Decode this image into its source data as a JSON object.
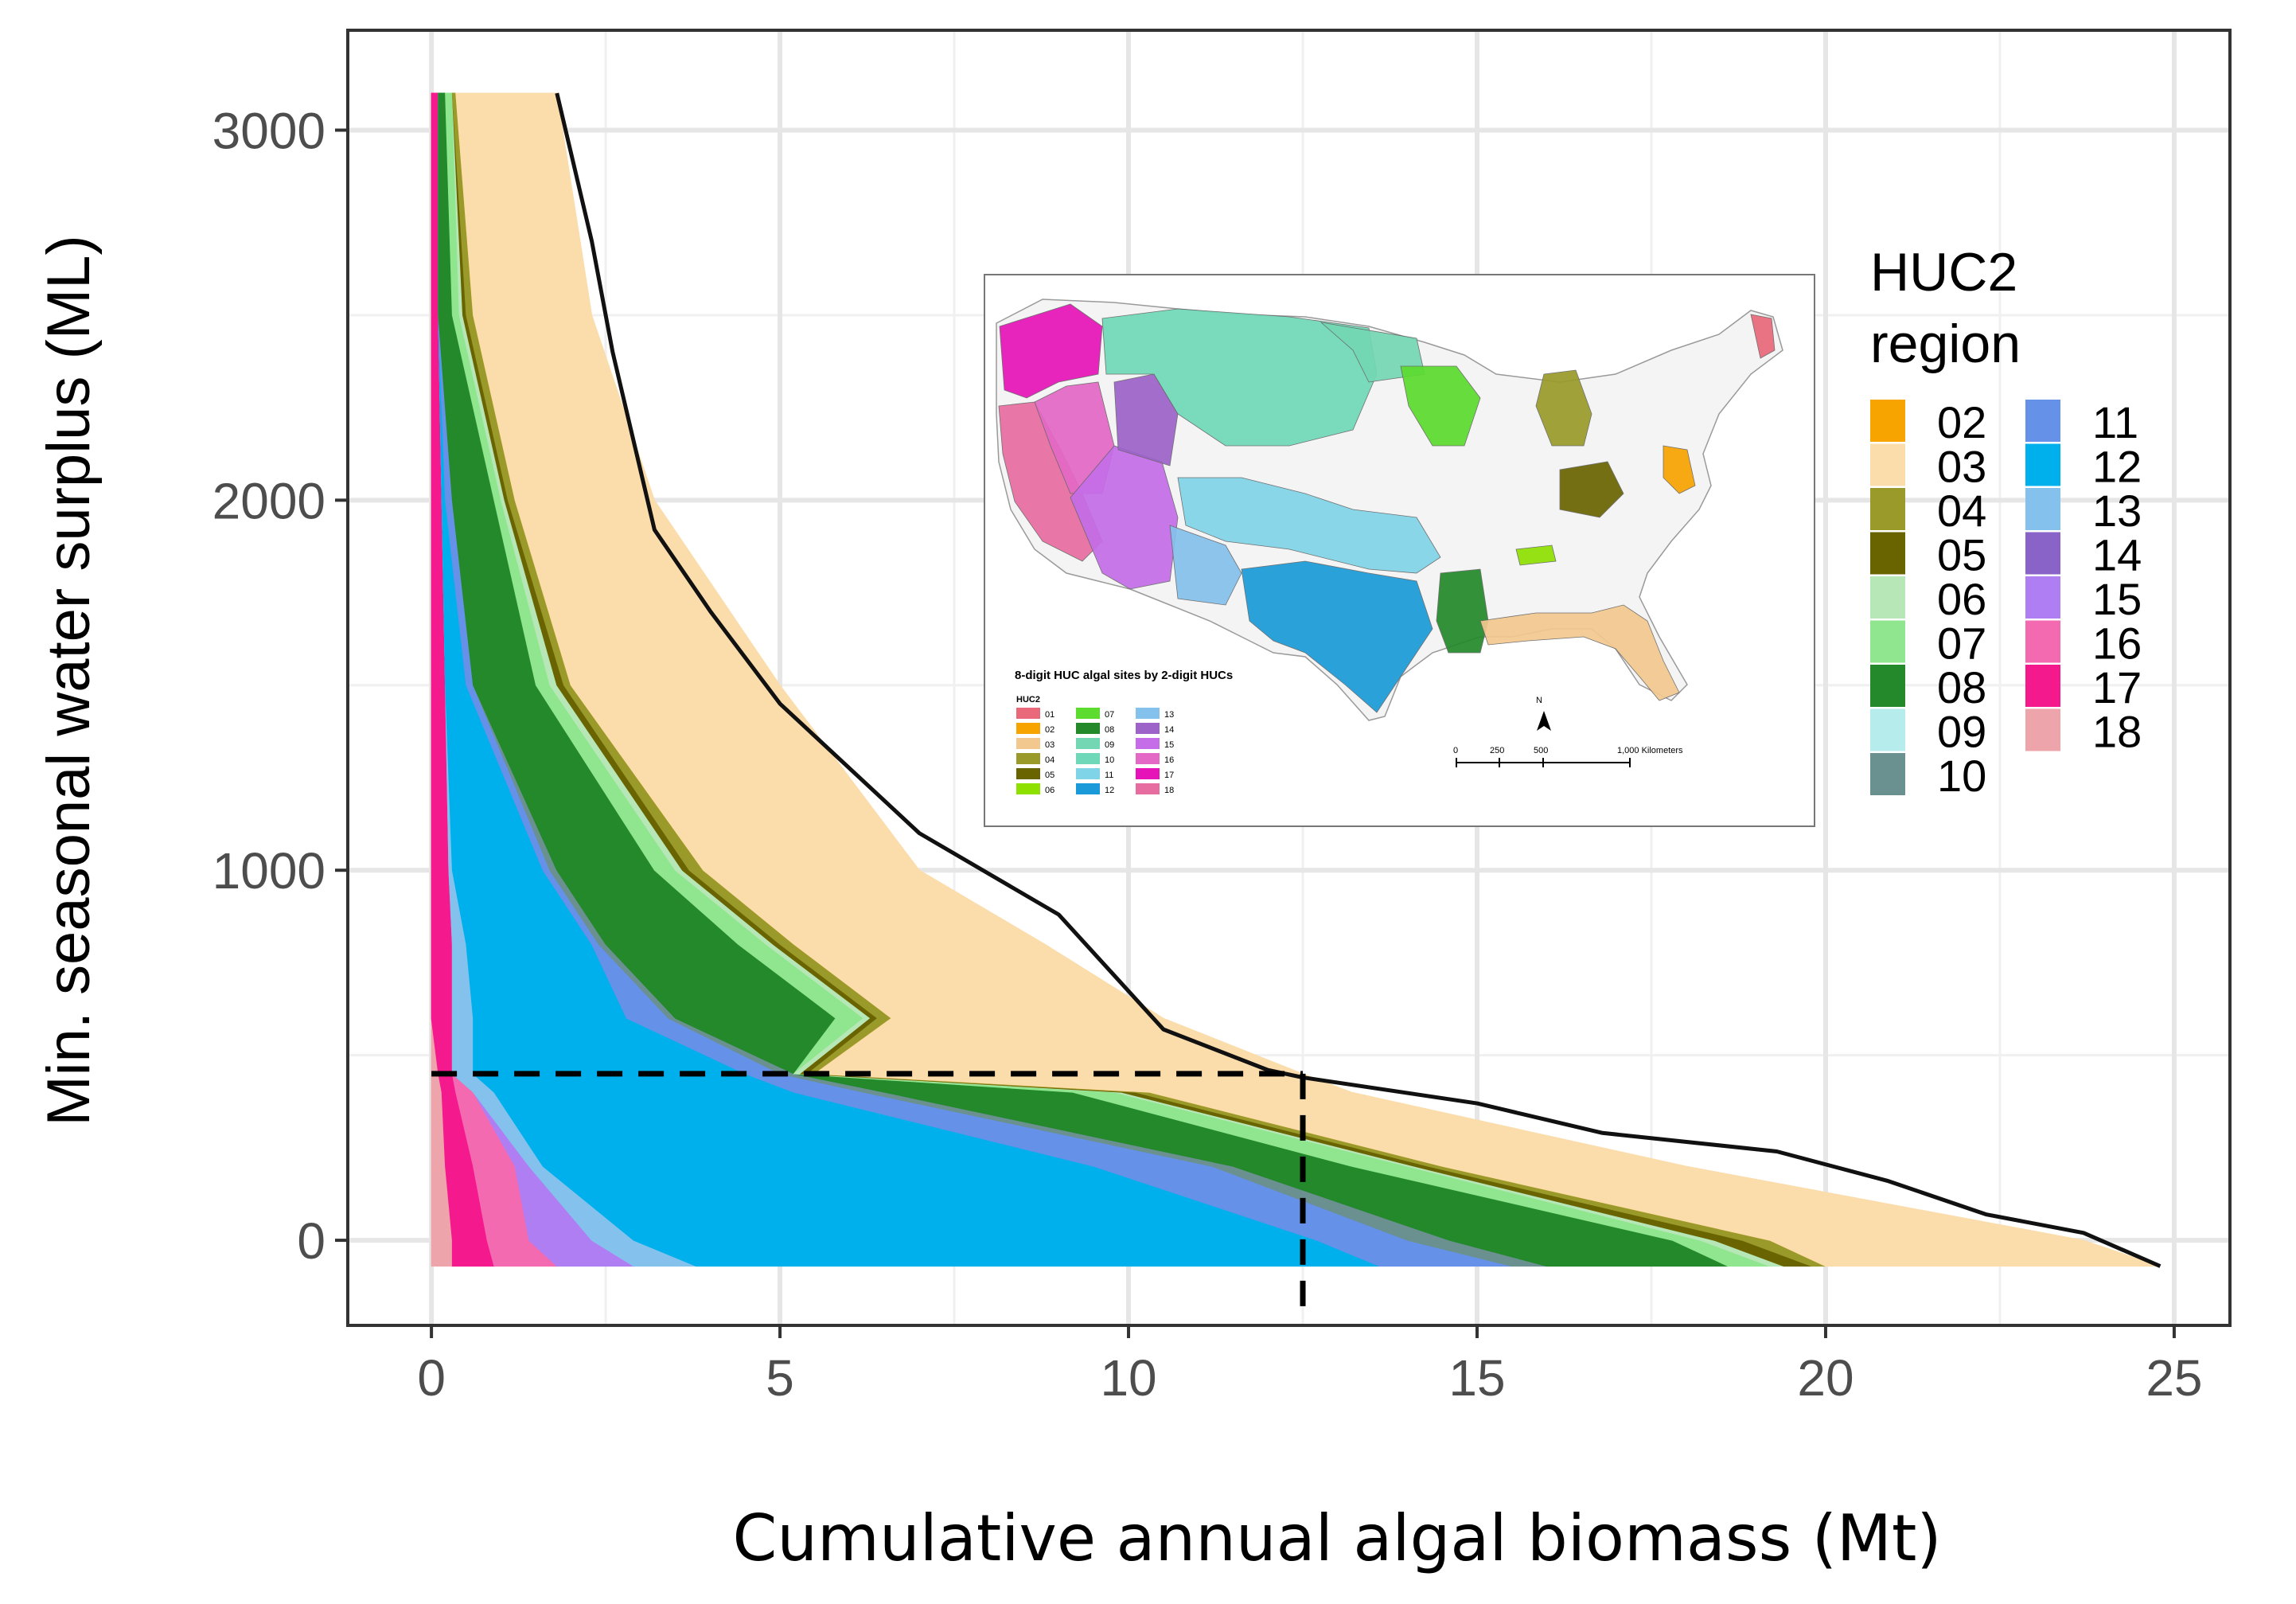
{
  "chart_data": {
    "type": "area",
    "title": "",
    "xlabel": "Cumulative annual algal biomass (Mt)",
    "ylabel": "Min. seasonal water surplus (ML)",
    "xlim": [
      -1.2,
      25.8
    ],
    "ylim": [
      -230,
      3270
    ],
    "xticks": [
      0,
      5,
      10,
      15,
      20,
      25
    ],
    "yticks": [
      0,
      1000,
      2000,
      3000
    ],
    "xtick_labels": [
      "0",
      "5",
      "10",
      "15",
      "20",
      "25"
    ],
    "ytick_labels": [
      "0",
      "1000",
      "2000",
      "3000"
    ],
    "grid": true,
    "y_levels": [
      -70,
      0,
      200,
      400,
      450,
      600,
      800,
      1000,
      1500,
      2000,
      2500,
      3100
    ],
    "stack_order_note": "cumulative x-boundaries per region, stacked left to right",
    "series": [
      {
        "name": "18",
        "color": "#eda4aa",
        "cumulative_x": [
          0.3,
          0.3,
          0.2,
          0.15,
          0.1,
          0.0,
          0.0,
          0.0,
          0.0,
          0.0,
          0.0,
          0.0
        ]
      },
      {
        "name": "17",
        "color": "#f5198e",
        "cumulative_x": [
          0.9,
          0.8,
          0.6,
          0.35,
          0.3,
          0.3,
          0.3,
          0.25,
          0.2,
          0.15,
          0.1,
          0.1
        ]
      },
      {
        "name": "16",
        "color": "#f46ab1",
        "cumulative_x": [
          1.8,
          1.4,
          1.2,
          0.6,
          0.3,
          0.3,
          0.3,
          0.25,
          0.2,
          0.15,
          0.1,
          0.1
        ]
      },
      {
        "name": "15",
        "color": "#b07ef3",
        "cumulative_x": [
          2.9,
          2.3,
          1.4,
          0.6,
          0.3,
          0.3,
          0.3,
          0.25,
          0.2,
          0.15,
          0.1,
          0.1
        ]
      },
      {
        "name": "13",
        "color": "#84c1ec",
        "cumulative_x": [
          3.8,
          2.9,
          1.6,
          0.9,
          0.6,
          0.6,
          0.5,
          0.3,
          0.2,
          0.15,
          0.1,
          0.1
        ]
      },
      {
        "name": "12",
        "color": "#00b0ec",
        "cumulative_x": [
          13.6,
          12.7,
          9.5,
          5.2,
          4.5,
          2.8,
          2.3,
          1.6,
          0.5,
          0.2,
          0.1,
          0.1
        ]
      },
      {
        "name": "11",
        "color": "#6591e8",
        "cumulative_x": [
          15.5,
          14.0,
          11.2,
          6.2,
          5.0,
          3.4,
          2.4,
          1.7,
          0.6,
          0.3,
          0.1,
          0.1
        ]
      },
      {
        "name": "10",
        "color": "#6a9090",
        "cumulative_x": [
          16.0,
          14.6,
          11.5,
          6.5,
          5.2,
          3.5,
          2.5,
          1.8,
          0.6,
          0.3,
          0.1,
          0.1
        ]
      },
      {
        "name": "08",
        "color": "#23892a",
        "cumulative_x": [
          18.6,
          17.8,
          13.2,
          9.2,
          5.2,
          5.8,
          4.4,
          3.2,
          1.5,
          0.9,
          0.3,
          0.2
        ]
      },
      {
        "name": "07",
        "color": "#8fe68e",
        "cumulative_x": [
          19.2,
          18.2,
          14.0,
          9.8,
          5.2,
          6.2,
          4.8,
          3.5,
          1.7,
          1.0,
          0.4,
          0.3
        ]
      },
      {
        "name": "06",
        "color": "#b7e7b7",
        "cumulative_x": [
          19.4,
          18.4,
          14.1,
          9.9,
          5.3,
          6.3,
          4.9,
          3.6,
          1.8,
          1.05,
          0.45,
          0.3
        ]
      },
      {
        "name": "05",
        "color": "#6a6400",
        "cumulative_x": [
          19.8,
          18.8,
          14.3,
          10.1,
          5.4,
          6.4,
          5.0,
          3.7,
          1.9,
          1.1,
          0.5,
          0.3
        ]
      },
      {
        "name": "04",
        "color": "#9a9a2a",
        "cumulative_x": [
          20.0,
          19.2,
          14.5,
          10.3,
          5.5,
          6.6,
          5.2,
          3.9,
          2.0,
          1.2,
          0.6,
          0.35
        ]
      },
      {
        "name": "02",
        "color": "#f7a300",
        "cumulative_x": [
          20.0,
          19.2,
          14.5,
          10.3,
          5.5,
          6.6,
          5.2,
          3.9,
          2.0,
          1.2,
          0.6,
          0.35
        ]
      },
      {
        "name": "03",
        "color": "#fbdcab",
        "cumulative_x": [
          24.8,
          23.7,
          18.0,
          13.2,
          12.5,
          10.5,
          8.8,
          7.0,
          5.0,
          3.2,
          2.3,
          1.8
        ]
      }
    ],
    "total_curve": {
      "x": [
        24.8,
        23.7,
        22.3,
        20.9,
        19.3,
        16.8,
        15.0,
        12.5,
        12.0,
        10.5,
        9.0,
        7.0,
        5.0,
        4.0,
        3.2,
        2.6,
        2.3,
        1.8
      ],
      "y": [
        -70,
        20,
        70,
        160,
        240,
        290,
        370,
        440,
        460,
        570,
        880,
        1100,
        1450,
        1700,
        1920,
        2400,
        2700,
        3100
      ]
    },
    "reference_line": {
      "x": 12.5,
      "y": 450,
      "style": "dashed"
    },
    "legend": {
      "title": "HUC2\nregion",
      "position": "right",
      "columns": [
        [
          {
            "label": "02",
            "color": "#f7a300"
          },
          {
            "label": "03",
            "color": "#fbdcab"
          },
          {
            "label": "04",
            "color": "#9a9a2a"
          },
          {
            "label": "05",
            "color": "#6a6400"
          },
          {
            "label": "06",
            "color": "#b7e7b7"
          },
          {
            "label": "07",
            "color": "#8fe68e"
          },
          {
            "label": "08",
            "color": "#23892a"
          },
          {
            "label": "09",
            "color": "#b6ecec"
          },
          {
            "label": "10",
            "color": "#6a9090"
          }
        ],
        [
          {
            "label": "11",
            "color": "#6591e8"
          },
          {
            "label": "12",
            "color": "#00b0ec"
          },
          {
            "label": "13",
            "color": "#84c1ec"
          },
          {
            "label": "14",
            "color": "#8a63c8"
          },
          {
            "label": "15",
            "color": "#b07ef3"
          },
          {
            "label": "16",
            "color": "#f46ab1"
          },
          {
            "label": "17",
            "color": "#f5198e"
          },
          {
            "label": "18",
            "color": "#eda4aa"
          }
        ]
      ]
    },
    "inset_map": {
      "title": "8-digit HUC algal sites by 2-digit HUCs",
      "key_header": "HUC2",
      "key": [
        {
          "label": "01",
          "color": "#e9687a"
        },
        {
          "label": "02",
          "color": "#f7a300"
        },
        {
          "label": "03",
          "color": "#f2c88f"
        },
        {
          "label": "04",
          "color": "#9a9a2a"
        },
        {
          "label": "05",
          "color": "#6a6400"
        },
        {
          "label": "06",
          "color": "#8ee000"
        },
        {
          "label": "07",
          "color": "#5cdc2e"
        },
        {
          "label": "08",
          "color": "#23892a"
        },
        {
          "label": "09",
          "color": "#74d7b3"
        },
        {
          "label": "10",
          "color": "#6fd8b8"
        },
        {
          "label": "11",
          "color": "#7fd4e8"
        },
        {
          "label": "12",
          "color": "#1a9ad8"
        },
        {
          "label": "13",
          "color": "#84c1ec"
        },
        {
          "label": "14",
          "color": "#9d63c8"
        },
        {
          "label": "15",
          "color": "#c56de8"
        },
        {
          "label": "16",
          "color": "#e468c6"
        },
        {
          "label": "17",
          "color": "#e614b8"
        },
        {
          "label": "18",
          "color": "#e76ca0"
        }
      ],
      "scale_labels": [
        "0",
        "250",
        "500",
        "1,000 Kilometers"
      ],
      "north_label": "N"
    }
  }
}
